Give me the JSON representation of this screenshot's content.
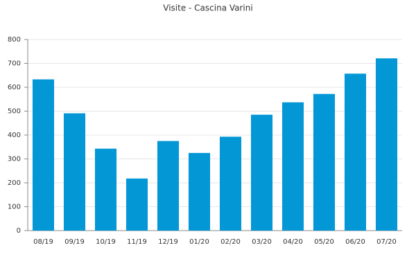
{
  "chart_data": {
    "type": "bar",
    "title": "Visite - Cascina Varini",
    "categories": [
      "08/19",
      "09/19",
      "10/19",
      "11/19",
      "12/19",
      "01/20",
      "02/20",
      "03/20",
      "04/20",
      "05/20",
      "06/20",
      "07/20"
    ],
    "values": [
      633,
      491,
      343,
      218,
      375,
      325,
      393,
      485,
      537,
      572,
      657,
      721
    ],
    "color": "#0397d6",
    "ylim": [
      0,
      800
    ],
    "yticks": [
      0,
      100,
      200,
      300,
      400,
      500,
      600,
      700,
      800
    ],
    "grid": true
  }
}
